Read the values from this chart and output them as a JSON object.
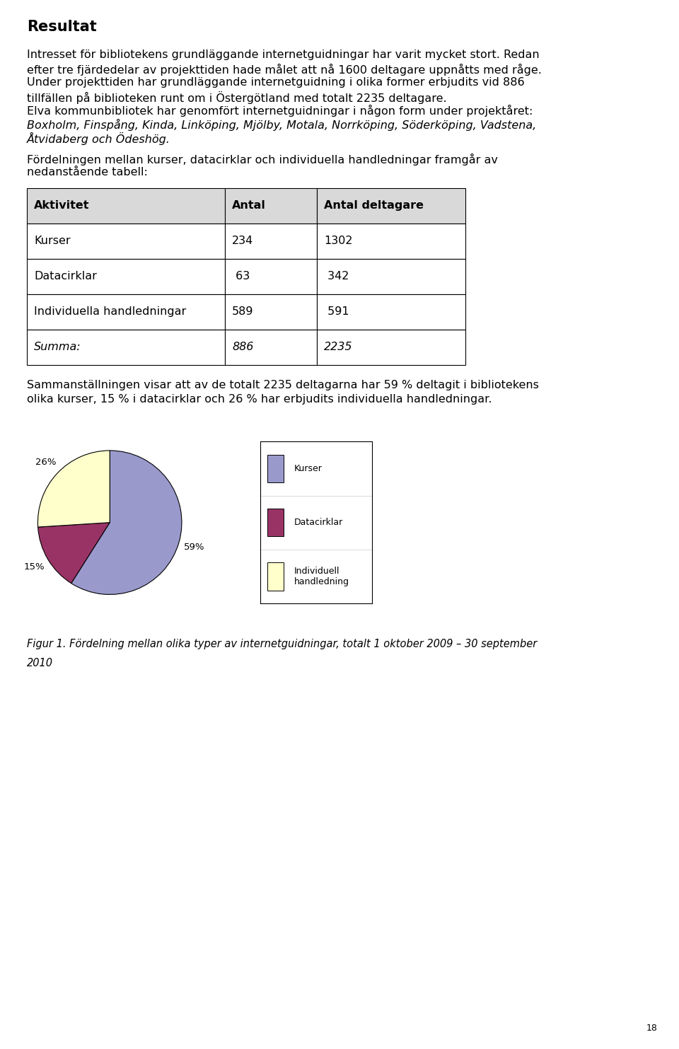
{
  "title": "Resultat",
  "para1_lines": [
    "Intresset för bibliotekens grundläggande internetguidningar har varit mycket stort. Redan",
    "efter tre fjärdedelar av projekttiden hade målet att nå 1600 deltagare uppnåtts med råge."
  ],
  "para2_lines": [
    "Under projekttiden har grundläggande internetguidning i olika former erbjudits vid 886",
    "tillfällen på biblioteken runt om i Östergötland med totalt 2235 deltagare."
  ],
  "para3_normal": "Elva kommunbibliotek har genomfört internetguidningar i någon form under projektåret:",
  "para3_italic_lines": [
    "Boxholm, Finspång, Kinda, Linköping, Mjölby, Motala, Norrköping, Söderköping, Vadstena,",
    "Åtvidaberg och Ödeshög."
  ],
  "para4_lines": [
    "Fördelningen mellan kurser, datacirklar och individuella handledningar framgår av",
    "nedanstående tabell:"
  ],
  "table_header": [
    "Aktivitet",
    "Antal",
    "Antal deltagare"
  ],
  "table_rows": [
    [
      "Kurser",
      "234",
      "1302"
    ],
    [
      "Datacirklar",
      " 63",
      " 342"
    ],
    [
      "Individuella handledningar",
      "589",
      " 591"
    ],
    [
      "Summa:",
      "886",
      "2235"
    ]
  ],
  "para5_lines": [
    "Sammanställningen visar att av de totalt 2235 deltagarna har 59 % deltagit i bibliotekens",
    "olika kurser, 15 % i datacirklar och 26 % har erbjudits individuella handledningar."
  ],
  "pie_values": [
    59,
    15,
    26
  ],
  "pie_pct_labels": [
    "59%",
    "15%",
    "26%"
  ],
  "pie_colors": [
    "#9999cc",
    "#993366",
    "#ffffcc"
  ],
  "pie_legend_labels": [
    "Kurser",
    "Datacirklar",
    "Individuell\nhandledning"
  ],
  "pie_legend_colors": [
    "#9999cc",
    "#993366",
    "#ffffcc"
  ],
  "fig_caption_lines": [
    "Figur 1. Fördelning mellan olika typer av internetguidningar, totalt 1 oktober 2009 – 30 september",
    "2010"
  ],
  "page_number": "18",
  "background_color": "#ffffff",
  "table_header_bg": "#d9d9d9",
  "table_border_color": "#000000",
  "text_color": "#000000",
  "font_size_body": 11.5,
  "font_size_title": 15,
  "font_size_table": 11.5,
  "font_size_caption": 10.5
}
